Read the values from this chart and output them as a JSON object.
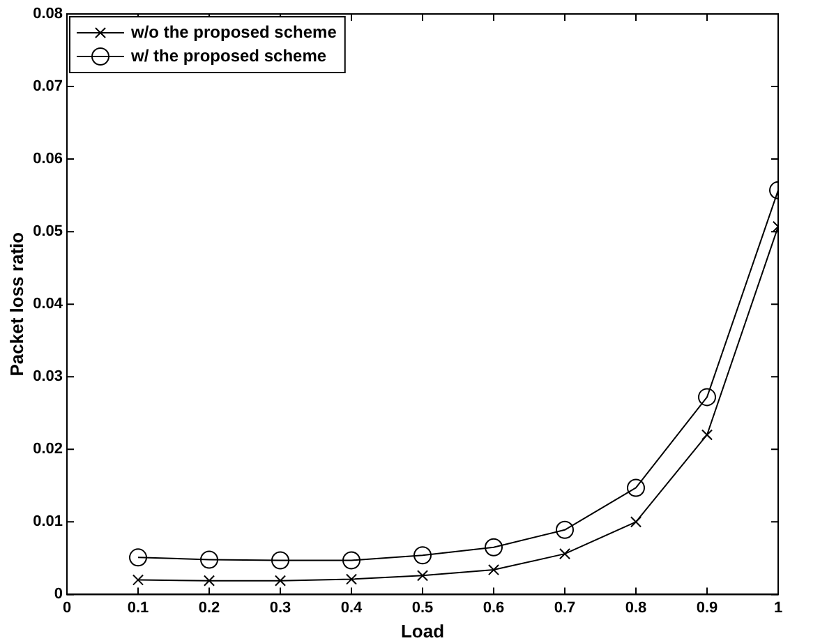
{
  "chart_data": {
    "type": "line",
    "xlabel": "Load",
    "ylabel": "Packet loss ratio",
    "x": [
      0.1,
      0.2,
      0.3,
      0.4,
      0.5,
      0.6,
      0.7,
      0.8,
      0.9,
      1
    ],
    "series": [
      {
        "name": "w/o the proposed scheme",
        "color": "#000000",
        "marker": "cross",
        "values": [
          0.002,
          0.0019,
          0.0019,
          0.0021,
          0.0026,
          0.0034,
          0.0056,
          0.01,
          0.022,
          0.0507
        ]
      },
      {
        "name": "w/ the proposed scheme",
        "color": "#000000",
        "marker": "circle",
        "values": [
          0.0051,
          0.0048,
          0.0047,
          0.0047,
          0.0054,
          0.0065,
          0.0089,
          0.0147,
          0.0272,
          0.0557
        ]
      }
    ],
    "xlim": [
      0,
      1
    ],
    "xticks": [
      0,
      0.1,
      0.2,
      0.3,
      0.4,
      0.5,
      0.6,
      0.7,
      0.8,
      0.9,
      1
    ],
    "ylim": [
      0,
      0.08
    ],
    "yticks": [
      0,
      0.01,
      0.02,
      0.03,
      0.04,
      0.05,
      0.06,
      0.07,
      0.08
    ],
    "grid": false,
    "legend": "top left",
    "line_style": "solid"
  }
}
